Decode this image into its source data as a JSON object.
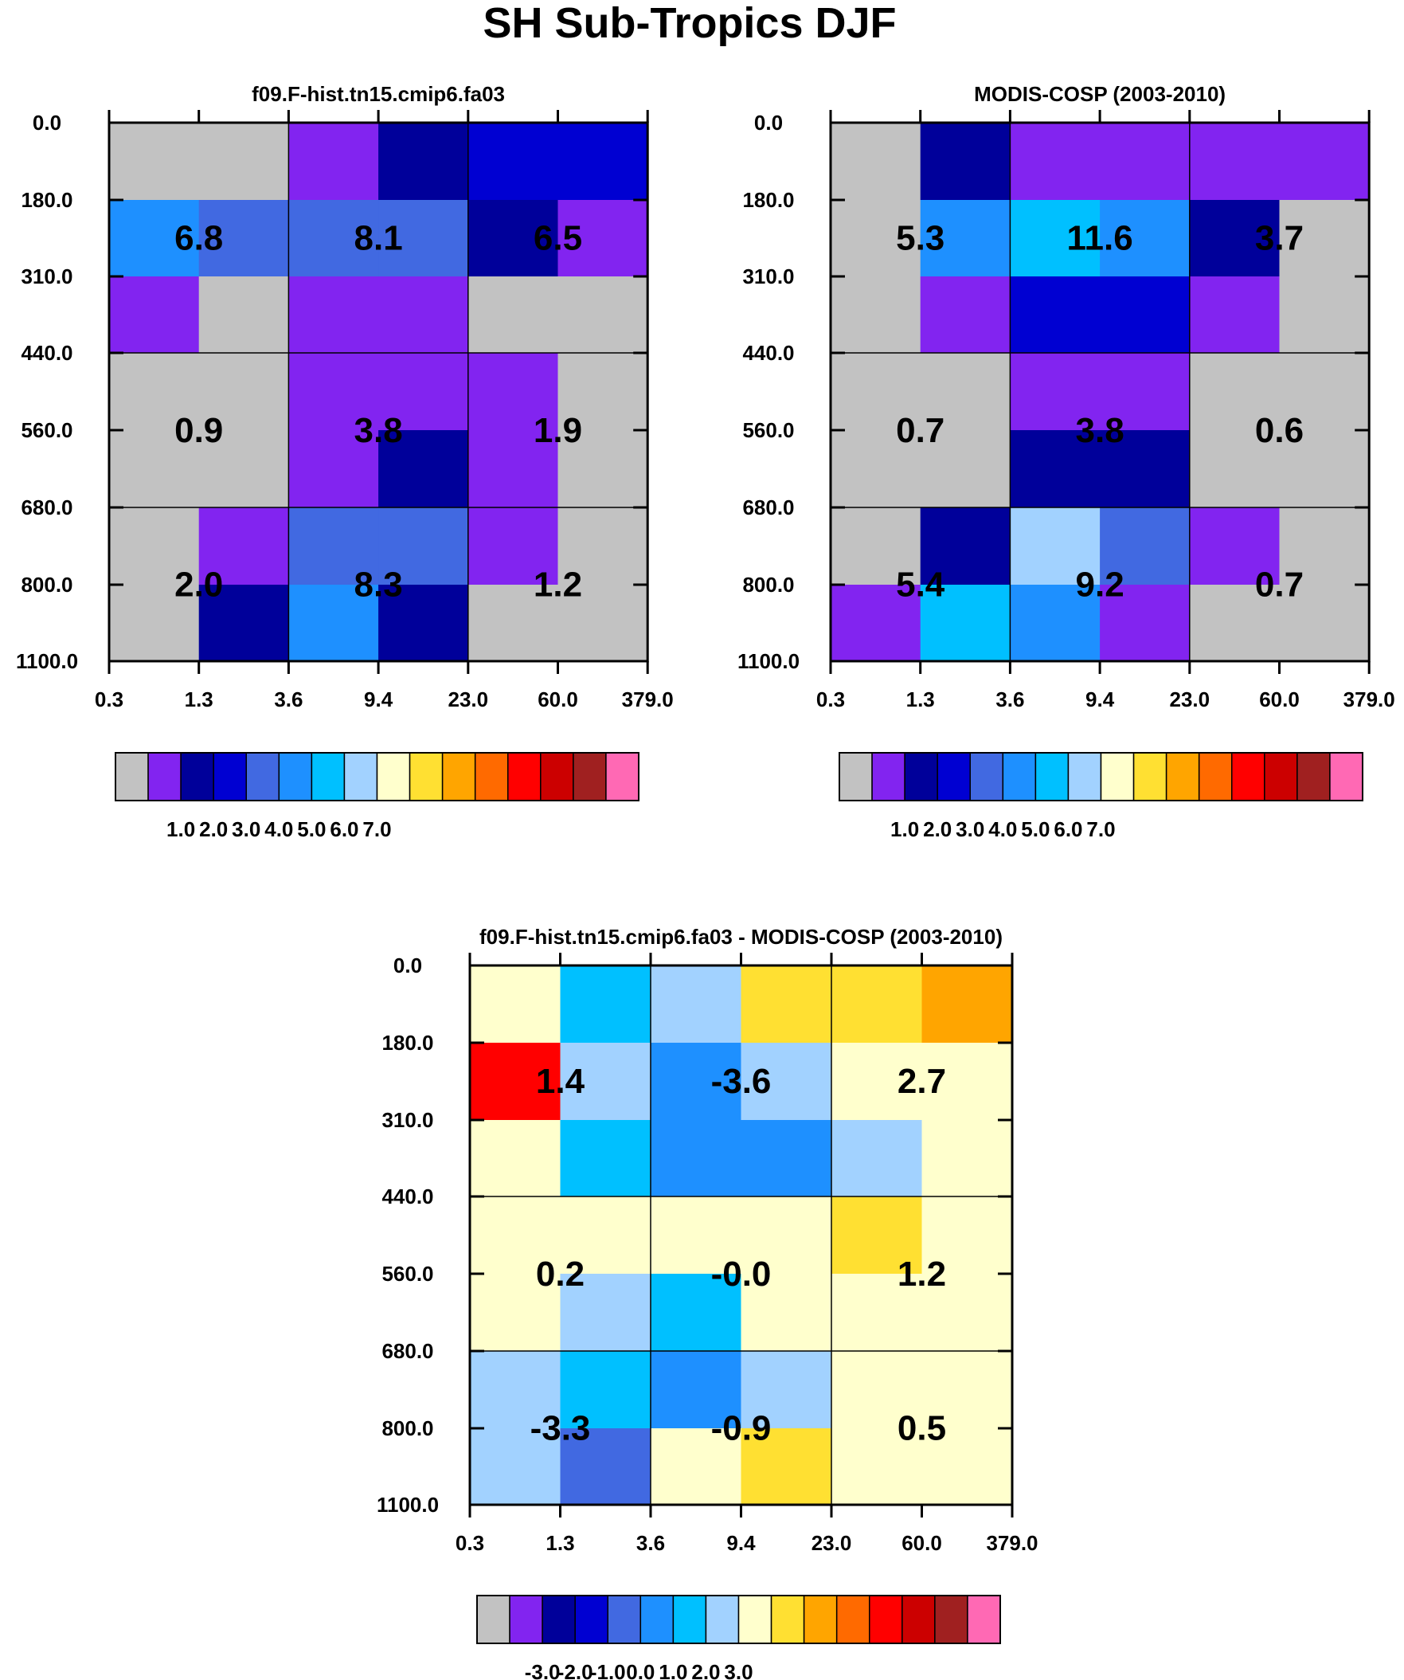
{
  "figure_title": "SH Sub-Tropics DJF",
  "colors": {
    "grey": "#c2c2c2",
    "purple": "#8224f0",
    "darkblue": "#00009a",
    "blue": "#0000d2",
    "royal": "#4169e1",
    "dodger": "#1e90ff",
    "deepsky": "#00c0ff",
    "lightsky": "#a2d2ff",
    "cream": "#ffffcd",
    "gold": "#ffe032",
    "orange": "#ffa500",
    "darkorange": "#ff6a00",
    "red": "#ff0000",
    "crimson": "#cc0000",
    "brown": "#a02020",
    "pink": "#ff69b4"
  },
  "colorbar_colors": [
    "grey",
    "purple",
    "darkblue",
    "blue",
    "royal",
    "dodger",
    "deepsky",
    "lightsky",
    "cream",
    "gold",
    "orange",
    "darkorange",
    "red",
    "crimson",
    "brown",
    "pink"
  ],
  "chart_data": [
    {
      "type": "heatmap",
      "id": "model",
      "title": "f09.F-hist.tn15.cmip6.fa03",
      "xlabel": "",
      "ylabel": "",
      "x_ticks": [
        "0.3",
        "1.3",
        "3.6",
        "9.4",
        "23.0",
        "60.0",
        "379.0"
      ],
      "y_ticks": [
        "0.0",
        "180.0",
        "310.0",
        "440.0",
        "560.0",
        "680.0",
        "800.0",
        "1100.0"
      ],
      "cells": [
        [
          "grey",
          "grey",
          "purple",
          "darkblue",
          "blue",
          "blue"
        ],
        [
          "dodger",
          "royal",
          "royal",
          "royal",
          "darkblue",
          "purple"
        ],
        [
          "purple",
          "grey",
          "purple",
          "purple",
          "grey",
          "grey"
        ],
        [
          "grey",
          "grey",
          "purple",
          "purple",
          "purple",
          "grey"
        ],
        [
          "grey",
          "grey",
          "purple",
          "darkblue",
          "purple",
          "grey"
        ],
        [
          "grey",
          "purple",
          "royal",
          "royal",
          "purple",
          "grey"
        ],
        [
          "grey",
          "darkblue",
          "dodger",
          "darkblue",
          "grey",
          "grey"
        ]
      ],
      "block_labels": [
        "6.8",
        "8.1",
        "6.5",
        "0.9",
        "3.8",
        "1.9",
        "2.0",
        "8.3",
        "1.2"
      ],
      "colorbar_labels": [
        "1.0",
        "2.0",
        "3.0",
        "4.0",
        "5.0",
        "6.0",
        "7.0"
      ]
    },
    {
      "type": "heatmap",
      "id": "obs",
      "title": "MODIS-COSP (2003-2010)",
      "xlabel": "",
      "ylabel": "",
      "x_ticks": [
        "0.3",
        "1.3",
        "3.6",
        "9.4",
        "23.0",
        "60.0",
        "379.0"
      ],
      "y_ticks": [
        "0.0",
        "180.0",
        "310.0",
        "440.0",
        "560.0",
        "680.0",
        "800.0",
        "1100.0"
      ],
      "cells": [
        [
          "grey",
          "darkblue",
          "purple",
          "purple",
          "purple",
          "purple"
        ],
        [
          "grey",
          "dodger",
          "deepsky",
          "dodger",
          "darkblue",
          "grey"
        ],
        [
          "grey",
          "purple",
          "blue",
          "blue",
          "purple",
          "grey"
        ],
        [
          "grey",
          "grey",
          "purple",
          "purple",
          "grey",
          "grey"
        ],
        [
          "grey",
          "grey",
          "darkblue",
          "darkblue",
          "grey",
          "grey"
        ],
        [
          "grey",
          "darkblue",
          "lightsky",
          "royal",
          "purple",
          "grey"
        ],
        [
          "purple",
          "deepsky",
          "dodger",
          "purple",
          "grey",
          "grey"
        ]
      ],
      "block_labels": [
        "5.3",
        "11.6",
        "3.7",
        "0.7",
        "3.8",
        "0.6",
        "5.4",
        "9.2",
        "0.7"
      ],
      "colorbar_labels": [
        "1.0",
        "2.0",
        "3.0",
        "4.0",
        "5.0",
        "6.0",
        "7.0"
      ]
    },
    {
      "type": "heatmap",
      "id": "diff",
      "title": "f09.F-hist.tn15.cmip6.fa03 - MODIS-COSP (2003-2010)",
      "xlabel": "",
      "ylabel": "",
      "x_ticks": [
        "0.3",
        "1.3",
        "3.6",
        "9.4",
        "23.0",
        "60.0",
        "379.0"
      ],
      "y_ticks": [
        "0.0",
        "180.0",
        "310.0",
        "440.0",
        "560.0",
        "680.0",
        "800.0",
        "1100.0"
      ],
      "cells": [
        [
          "cream",
          "deepsky",
          "lightsky",
          "gold",
          "gold",
          "orange"
        ],
        [
          "red",
          "lightsky",
          "dodger",
          "lightsky",
          "cream",
          "cream"
        ],
        [
          "cream",
          "deepsky",
          "dodger",
          "dodger",
          "lightsky",
          "cream"
        ],
        [
          "cream",
          "cream",
          "cream",
          "cream",
          "gold",
          "cream"
        ],
        [
          "cream",
          "lightsky",
          "deepsky",
          "cream",
          "cream",
          "cream"
        ],
        [
          "lightsky",
          "deepsky",
          "dodger",
          "lightsky",
          "cream",
          "cream"
        ],
        [
          "lightsky",
          "royal",
          "cream",
          "gold",
          "cream",
          "cream"
        ]
      ],
      "block_labels": [
        "1.4",
        "-3.6",
        "2.7",
        "0.2",
        "-0.0",
        "1.2",
        "-3.3",
        "-0.9",
        "0.5"
      ],
      "colorbar_labels": [
        "-3.0",
        "-2.0",
        "-1.0",
        "0.0",
        "1.0",
        "2.0",
        "3.0"
      ]
    }
  ]
}
